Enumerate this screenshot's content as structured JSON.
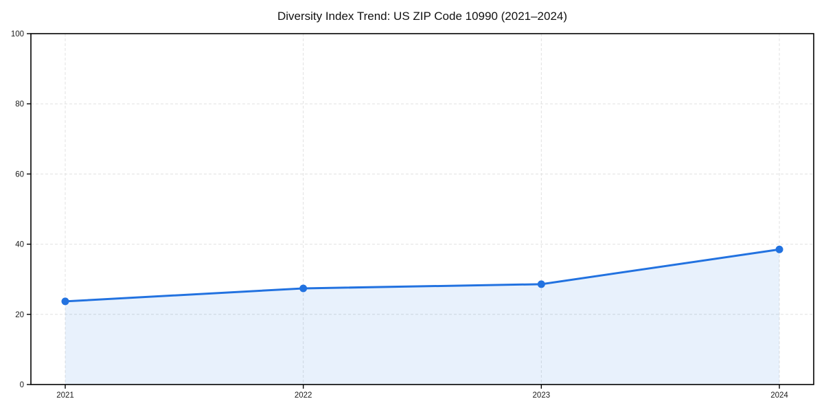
{
  "chart_data": {
    "type": "line",
    "title": "Diversity Index Trend: US ZIP Code 10990 (2021–2024)",
    "categories": [
      "2021",
      "2022",
      "2023",
      "2024"
    ],
    "series": [
      {
        "name": "Diversity Index",
        "values": [
          23.7,
          27.4,
          28.6,
          38.5
        ]
      }
    ],
    "xlabel": "",
    "ylabel": "",
    "ylim": [
      0,
      100
    ],
    "yticks": [
      0,
      20,
      40,
      60,
      80,
      100
    ],
    "grid": true,
    "legend_position": "none",
    "colors": {
      "line": "#2272e0",
      "marker": "#2272e0",
      "area_fill": "rgba(34,114,224,0.10)",
      "grid": "#e0e0e0",
      "axis": "#000000",
      "tick_text": "#1a1a1a",
      "title_text": "#111111",
      "background": "#ffffff"
    }
  }
}
